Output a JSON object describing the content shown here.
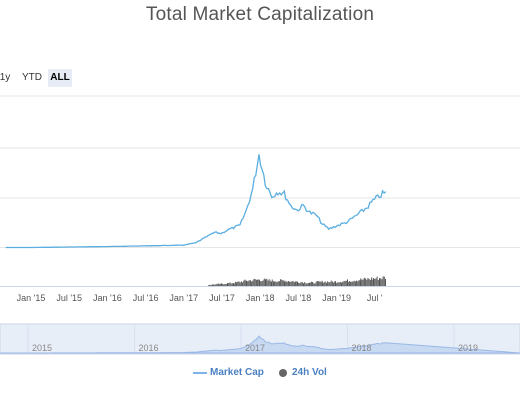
{
  "title": "Total Market Capitalization",
  "range_buttons": [
    {
      "label": "1y",
      "active": false
    },
    {
      "label": "YTD",
      "active": false
    },
    {
      "label": "ALL",
      "active": true
    }
  ],
  "legend": [
    {
      "label": "Market Cap",
      "color": "#7cb5ec",
      "icon": "line-marker-icon"
    },
    {
      "label": "24h Vol",
      "color": "#666666",
      "icon": "circle-marker-icon"
    }
  ],
  "colors": {
    "series_line": "#5aaee0",
    "volume": "#555555",
    "navigator_fill": "#e8eef8",
    "navigator_line": "#9ab8e6",
    "grid": "#e6e6e6"
  },
  "chart_data": {
    "type": "line",
    "title": "Total Market Capitalization",
    "x_tick_labels": [
      "Jan '15",
      "Jul '15",
      "Jan '16",
      "Jul '16",
      "Jan '17",
      "Jul '17",
      "Jan '18",
      "Jul '18",
      "Jan '19",
      "Jul '"
    ],
    "navigator_labels": [
      "2015",
      "2016",
      "2017",
      "2018",
      "2019"
    ],
    "x_range": [
      "2014-09",
      "2019-09"
    ],
    "grid": true,
    "legend_position": "bottom-center",
    "series": [
      {
        "name": "Market Cap",
        "x": [
          "2014-09",
          "2015-01",
          "2015-07",
          "2016-01",
          "2016-07",
          "2017-01",
          "2017-03",
          "2017-05",
          "2017-06",
          "2017-07",
          "2017-08",
          "2017-09",
          "2017-10",
          "2017-11",
          "2017-12",
          "2018-01",
          "2018-02",
          "2018-03",
          "2018-04",
          "2018-05",
          "2018-06",
          "2018-07",
          "2018-08",
          "2018-09",
          "2018-10",
          "2018-11",
          "2018-12",
          "2019-01",
          "2019-02",
          "2019-03",
          "2019-04",
          "2019-05",
          "2019-06",
          "2019-07",
          "2019-08",
          "2019-09"
        ],
        "values": [
          0.0,
          0.0,
          0.2,
          0.4,
          0.7,
          1.0,
          2.0,
          5.0,
          6.5,
          6.0,
          7.5,
          8.5,
          9.5,
          16,
          25,
          40,
          28,
          22,
          24,
          23,
          18,
          16,
          18,
          15,
          14,
          10,
          8,
          9,
          10,
          11,
          13,
          15,
          17,
          20,
          22,
          24
        ]
      },
      {
        "name": "24h Vol",
        "x": [
          "2017-05",
          "2017-07",
          "2017-09",
          "2017-11",
          "2018-01",
          "2018-03",
          "2018-05",
          "2018-07",
          "2018-09",
          "2018-11",
          "2019-01",
          "2019-03",
          "2019-05",
          "2019-07",
          "2019-09"
        ],
        "values": [
          1,
          2,
          3,
          5,
          6,
          5,
          5,
          4,
          3,
          4,
          4,
          5,
          6,
          7,
          8
        ]
      }
    ]
  }
}
